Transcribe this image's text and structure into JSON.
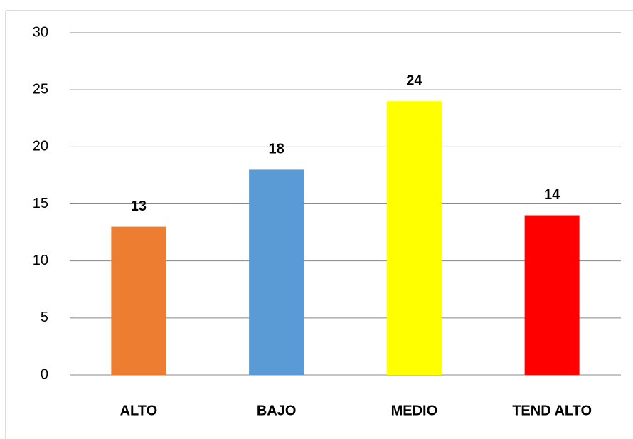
{
  "chart_data": {
    "type": "bar",
    "categories": [
      "ALTO",
      "BAJO",
      "MEDIO",
      "TEND ALTO"
    ],
    "values": [
      13,
      18,
      24,
      14
    ],
    "colors": [
      "#ED7D31",
      "#5B9BD5",
      "#FFFF00",
      "#FF0000"
    ],
    "ylim": [
      0,
      30
    ],
    "yticks": [
      0,
      5,
      10,
      15,
      20,
      25,
      30
    ],
    "grid": true
  }
}
